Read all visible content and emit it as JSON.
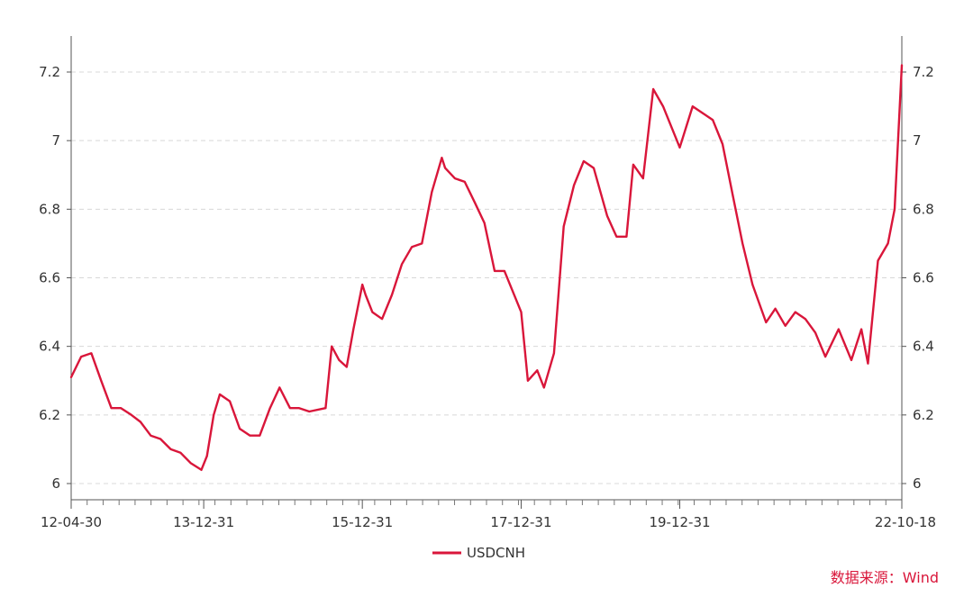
{
  "chart_data": {
    "type": "line",
    "title": "",
    "xlabel": "",
    "ylabel": "",
    "ylim": [
      6,
      7.2
    ],
    "y_ticks": [
      "6",
      "6.2",
      "6.4",
      "6.6",
      "6.8",
      "7",
      "7.2"
    ],
    "y_tick_values": [
      6,
      6.2,
      6.4,
      6.6,
      6.8,
      7.0,
      7.2
    ],
    "x_range": [
      "2012-04-30",
      "2022-10-18"
    ],
    "x_ticks": [
      "12-04-30",
      "13-12-31",
      "15-12-31",
      "17-12-31",
      "19-12-31",
      "22-10-18"
    ],
    "x_tick_dates": [
      "2012-04-30",
      "2013-12-31",
      "2015-12-31",
      "2017-12-31",
      "2019-12-31",
      "2022-10-18"
    ],
    "grid": "horizontal dashed",
    "dual_y_axis": true,
    "legend_position": "bottom-center",
    "series": [
      {
        "name": "USDCNH",
        "color": "#d9163a",
        "x": [
          "2012-04-30",
          "2012-06-15",
          "2012-08-01",
          "2012-09-15",
          "2012-11-01",
          "2012-12-15",
          "2013-02-01",
          "2013-03-15",
          "2013-05-01",
          "2013-06-15",
          "2013-08-01",
          "2013-09-15",
          "2013-11-01",
          "2013-12-20",
          "2014-01-15",
          "2014-02-15",
          "2014-03-15",
          "2014-04-30",
          "2014-06-15",
          "2014-08-01",
          "2014-09-15",
          "2014-11-01",
          "2014-12-15",
          "2015-02-01",
          "2015-03-15",
          "2015-05-01",
          "2015-07-15",
          "2015-08-12",
          "2015-09-15",
          "2015-10-20",
          "2015-11-20",
          "2015-12-31",
          "2016-01-15",
          "2016-02-15",
          "2016-03-31",
          "2016-05-15",
          "2016-06-30",
          "2016-08-15",
          "2016-09-30",
          "2016-11-15",
          "2016-12-31",
          "2017-01-15",
          "2017-03-01",
          "2017-04-15",
          "2017-05-31",
          "2017-07-15",
          "2017-08-31",
          "2017-10-15",
          "2017-12-31",
          "2018-01-31",
          "2018-03-15",
          "2018-04-15",
          "2018-05-31",
          "2018-07-15",
          "2018-08-31",
          "2018-10-15",
          "2018-11-30",
          "2019-01-31",
          "2019-03-15",
          "2019-04-30",
          "2019-05-31",
          "2019-07-15",
          "2019-08-31",
          "2019-10-15",
          "2019-12-31",
          "2020-02-28",
          "2020-04-15",
          "2020-05-31",
          "2020-07-15",
          "2020-08-31",
          "2020-10-15",
          "2020-11-30",
          "2021-01-31",
          "2021-03-15",
          "2021-04-30",
          "2021-06-15",
          "2021-07-31",
          "2021-09-15",
          "2021-10-31",
          "2021-12-31",
          "2022-02-28",
          "2022-04-15",
          "2022-05-15",
          "2022-06-30",
          "2022-08-15",
          "2022-09-15",
          "2022-10-18"
        ],
        "values": [
          6.31,
          6.37,
          6.38,
          6.3,
          6.22,
          6.22,
          6.2,
          6.18,
          6.14,
          6.13,
          6.1,
          6.09,
          6.06,
          6.04,
          6.08,
          6.2,
          6.26,
          6.24,
          6.16,
          6.14,
          6.14,
          6.22,
          6.28,
          6.22,
          6.22,
          6.21,
          6.22,
          6.4,
          6.36,
          6.34,
          6.45,
          6.58,
          6.55,
          6.5,
          6.48,
          6.55,
          6.64,
          6.69,
          6.7,
          6.85,
          6.95,
          6.92,
          6.89,
          6.88,
          6.82,
          6.76,
          6.62,
          6.62,
          6.5,
          6.3,
          6.33,
          6.28,
          6.38,
          6.75,
          6.87,
          6.94,
          6.92,
          6.78,
          6.72,
          6.72,
          6.93,
          6.89,
          7.15,
          7.1,
          6.98,
          7.1,
          7.08,
          7.06,
          6.99,
          6.84,
          6.7,
          6.58,
          6.47,
          6.51,
          6.46,
          6.5,
          6.48,
          6.44,
          6.37,
          6.45,
          6.36,
          6.45,
          6.35,
          6.65,
          6.7,
          6.8,
          7.22
        ]
      }
    ]
  },
  "legend": {
    "label": "USDCNH"
  },
  "source_note": "数据来源：Wind"
}
